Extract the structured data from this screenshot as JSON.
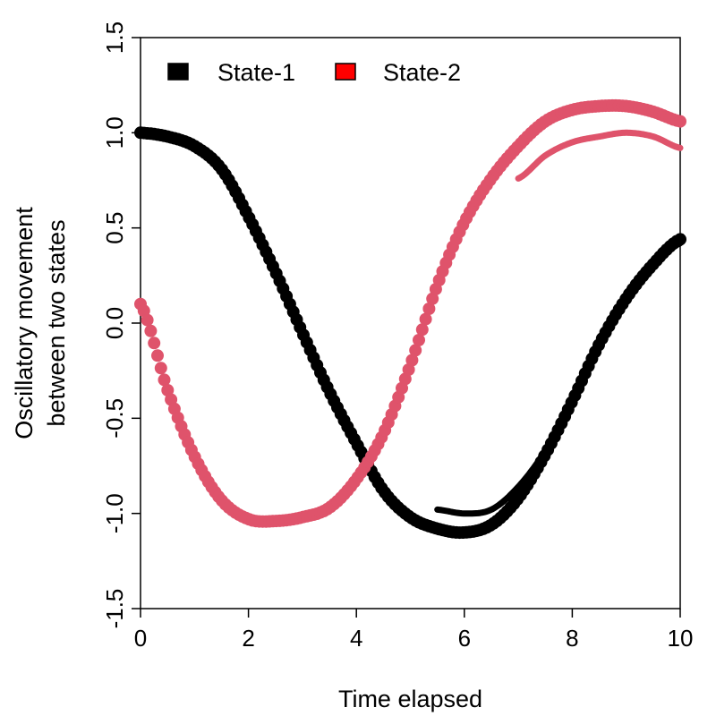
{
  "chart_data": {
    "type": "scatter",
    "title": "",
    "xlabel": "Time elapsed",
    "ylabel_lines": [
      "Oscillatory movement",
      "between two states"
    ],
    "xlim": [
      0,
      10
    ],
    "ylim": [
      -1.5,
      1.5
    ],
    "x_ticks": [
      0,
      2,
      4,
      6,
      8,
      10
    ],
    "x_tick_labels": [
      "0",
      "2",
      "4",
      "6",
      "8",
      "10"
    ],
    "y_ticks": [
      -1.5,
      -1.0,
      -0.5,
      0.0,
      0.5,
      1.0,
      1.5
    ],
    "y_tick_labels": [
      "-1.5",
      "-1.0",
      "-0.5",
      "0.0",
      "0.5",
      "1.0",
      "1.5"
    ],
    "grid": false,
    "legend_position": "top-left",
    "x": [
      0.0,
      0.5,
      1.0,
      1.5,
      2.0,
      2.5,
      3.0,
      3.5,
      4.0,
      4.5,
      5.0,
      5.5,
      6.0,
      6.5,
      7.0,
      7.5,
      8.0,
      8.5,
      9.0,
      9.5,
      10.0
    ],
    "series": [
      {
        "name": "State-1",
        "legend_color": "#000000",
        "color": "#000000",
        "values": [
          1.0,
          0.98,
          0.93,
          0.81,
          0.56,
          0.27,
          -0.05,
          -0.36,
          -0.63,
          -0.88,
          -1.02,
          -1.08,
          -1.1,
          -1.06,
          -0.92,
          -0.69,
          -0.41,
          -0.11,
          0.13,
          0.31,
          0.44
        ]
      },
      {
        "name": "State-2",
        "legend_color": "#ff0000",
        "color": "#df536b",
        "values": [
          0.1,
          -0.35,
          -0.7,
          -0.93,
          -1.03,
          -1.04,
          -1.02,
          -0.97,
          -0.82,
          -0.58,
          -0.22,
          0.2,
          0.53,
          0.76,
          0.93,
          1.06,
          1.12,
          1.14,
          1.14,
          1.11,
          1.06
        ]
      }
    ],
    "lower_curves": [
      {
        "name_ref": "State-1",
        "x": [
          5.5,
          6.0,
          6.5,
          7.0,
          7.5,
          8.0,
          8.5,
          9.0,
          9.5,
          10.0
        ],
        "values": [
          -0.98,
          -1.0,
          -0.98,
          -0.86,
          -0.67,
          -0.4,
          -0.12,
          0.12,
          0.3,
          0.42
        ]
      },
      {
        "name_ref": "State-2",
        "x": [
          7.0,
          7.5,
          8.0,
          8.5,
          9.0,
          9.5,
          10.0
        ],
        "values": [
          0.76,
          0.88,
          0.95,
          0.98,
          1.0,
          0.98,
          0.92
        ]
      }
    ]
  }
}
